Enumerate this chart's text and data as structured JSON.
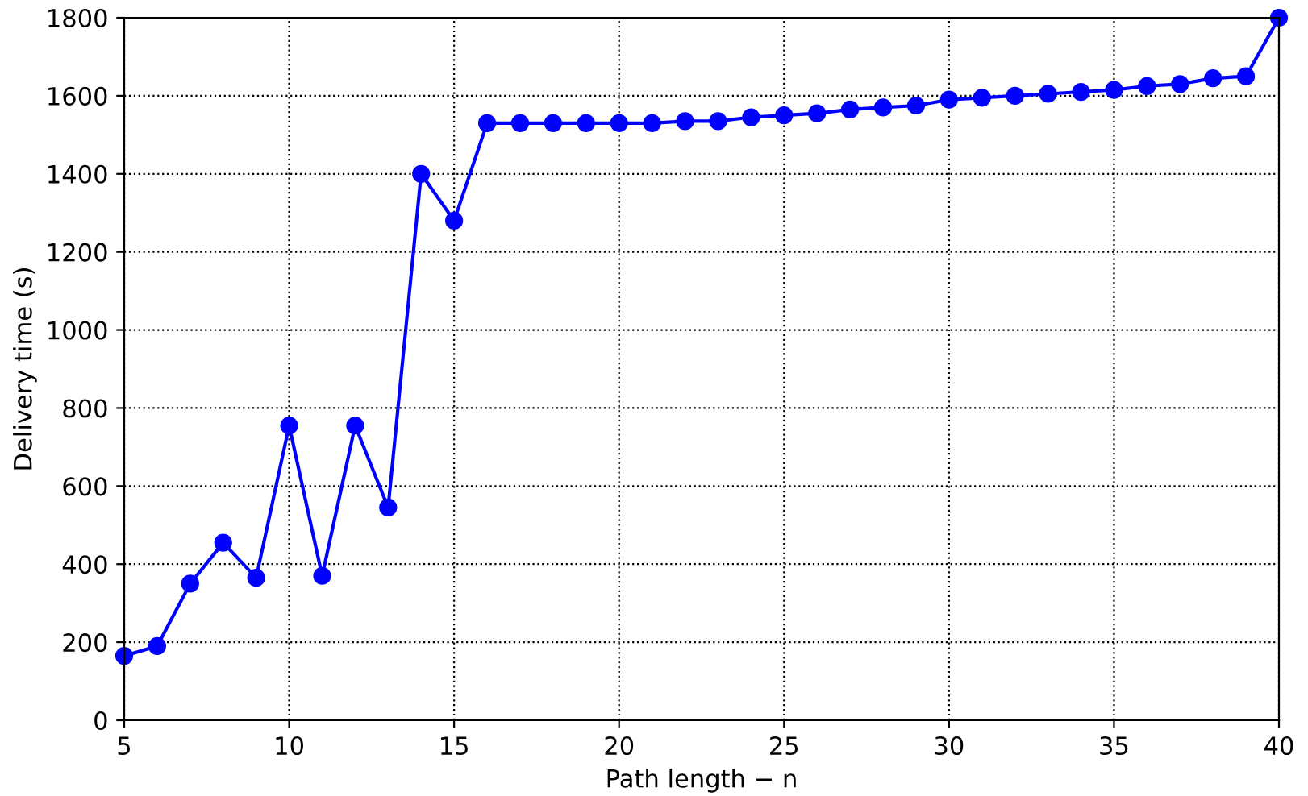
{
  "chart_data": {
    "type": "line",
    "xlabel": "Path length − n",
    "ylabel": "Delivery time (s)",
    "x": [
      5,
      6,
      7,
      8,
      9,
      10,
      11,
      12,
      13,
      14,
      15,
      16,
      17,
      18,
      19,
      20,
      21,
      22,
      23,
      24,
      25,
      26,
      27,
      28,
      29,
      30,
      31,
      32,
      33,
      34,
      35,
      36,
      37,
      38,
      39,
      40
    ],
    "series": [
      {
        "color": "#0000ff",
        "values": [
          165,
          190,
          350,
          455,
          365,
          755,
          370,
          755,
          545,
          1400,
          1280,
          1530,
          1530,
          1530,
          1530,
          1530,
          1530,
          1535,
          1535,
          1545,
          1550,
          1555,
          1565,
          1570,
          1575,
          1590,
          1595,
          1600,
          1605,
          1610,
          1615,
          1625,
          1630,
          1645,
          1650,
          1800
        ]
      }
    ],
    "xlim": [
      5,
      40
    ],
    "ylim": [
      0,
      1800
    ],
    "xticks": [
      5,
      10,
      15,
      20,
      25,
      30,
      35,
      40
    ],
    "yticks": [
      0,
      200,
      400,
      600,
      800,
      1000,
      1200,
      1400,
      1600,
      1800
    ],
    "grid": true,
    "marker": "circle",
    "line_style": "solid"
  }
}
